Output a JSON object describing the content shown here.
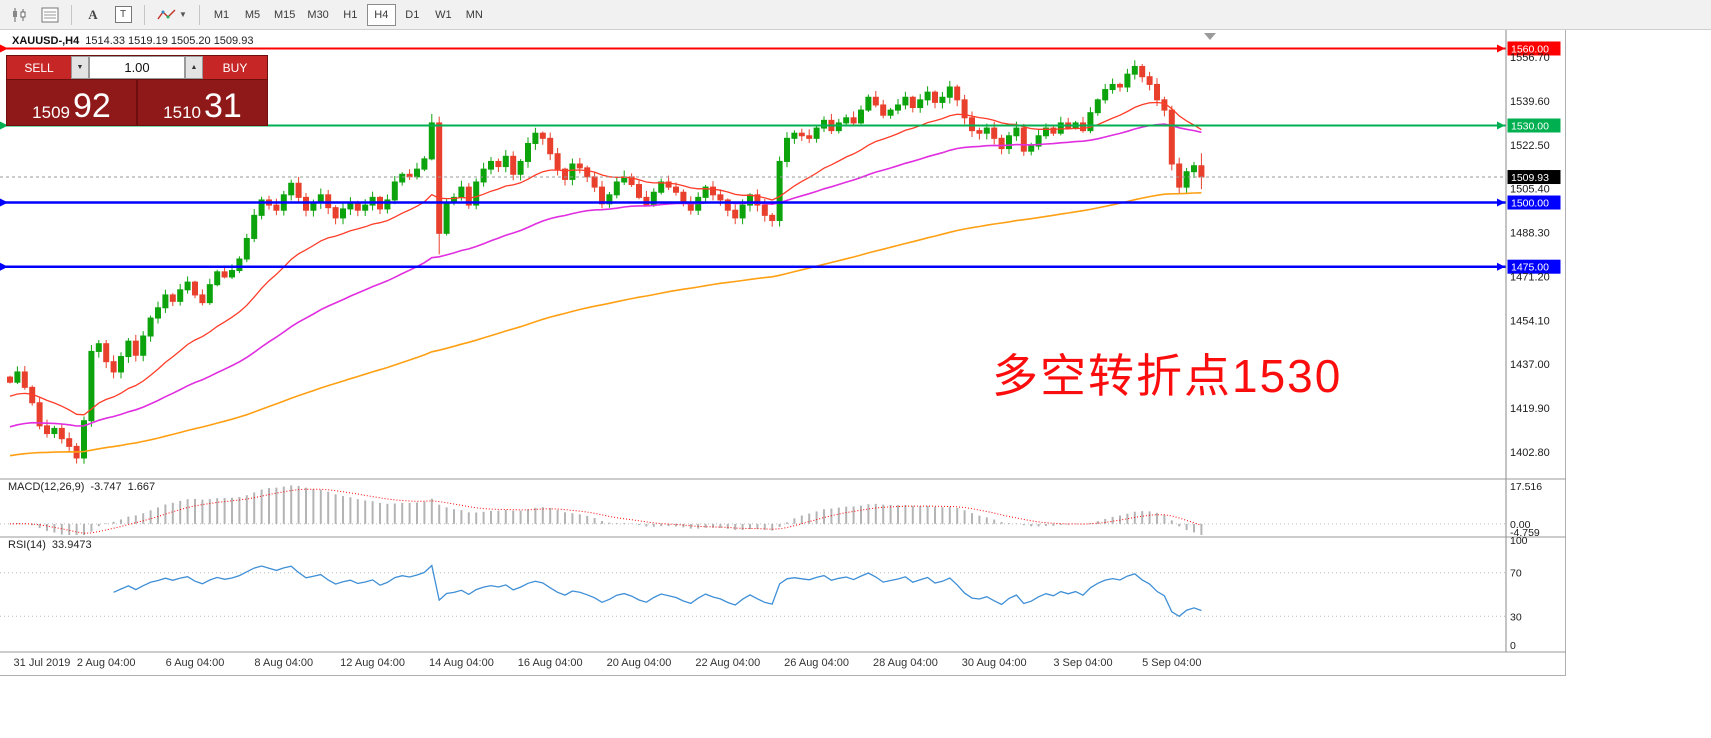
{
  "toolbar": {
    "cursor_label": "A",
    "text_label": "T",
    "timeframes": [
      {
        "label": "M1",
        "active": false
      },
      {
        "label": "M5",
        "active": false
      },
      {
        "label": "M15",
        "active": false
      },
      {
        "label": "M30",
        "active": false
      },
      {
        "label": "H1",
        "active": false
      },
      {
        "label": "H4",
        "active": true
      },
      {
        "label": "D1",
        "active": false
      },
      {
        "label": "W1",
        "active": false
      },
      {
        "label": "MN",
        "active": false
      }
    ]
  },
  "chart": {
    "symbol_title": "XAUUSD-,H4",
    "ohlc_line": "1514.33 1519.19 1505.20 1509.93",
    "trade_panel": {
      "sell_label": "SELL",
      "buy_label": "BUY",
      "volume": "1.00",
      "bid_main": "1509",
      "bid_pips": "92",
      "ask_main": "1510",
      "ask_pips": "31"
    },
    "price_axis": [
      {
        "text": "1556.70",
        "value": 1556.7
      },
      {
        "text": "1539.60",
        "value": 1539.6
      },
      {
        "text": "1522.50",
        "value": 1522.5
      },
      {
        "text": "1505.40",
        "value": 1505.4
      },
      {
        "text": "1488.30",
        "value": 1488.3
      },
      {
        "text": "1471.20",
        "value": 1471.2
      },
      {
        "text": "1454.10",
        "value": 1454.1
      },
      {
        "text": "1437.00",
        "value": 1437.0
      },
      {
        "text": "1419.90",
        "value": 1419.9
      },
      {
        "text": "1402.80",
        "value": 1402.8
      }
    ]
  },
  "chart_data": {
    "type": "candlestick",
    "symbol": "XAUUSD",
    "timeframe": "H4",
    "title": "XAUUSD-,H4 1514.33 1519.19 1505.20 1509.93",
    "annotation": {
      "text": "多空转折点1530",
      "color": "#fb0d0d"
    },
    "price_axis_range": {
      "min": 1392.3,
      "max": 1567.2
    },
    "up_color": "#0ca30c",
    "down_color": "#e8402c",
    "open_first": 1432,
    "closes": [
      1430,
      1434,
      1428,
      1422,
      1413,
      1410,
      1412,
      1408,
      1405,
      1400.5,
      1415,
      1442,
      1445,
      1438,
      1434,
      1440,
      1446,
      1440.5,
      1448,
      1455,
      1459,
      1464,
      1461.5,
      1466,
      1469,
      1464,
      1461,
      1468,
      1473,
      1471,
      1473.5,
      1478,
      1486,
      1495,
      1501,
      1499,
      1497,
      1503,
      1507.5,
      1502,
      1497,
      1500,
      1503,
      1498,
      1494,
      1497.5,
      1500,
      1497,
      1499,
      1502,
      1497.5,
      1501,
      1508,
      1511,
      1510,
      1513,
      1517,
      1531,
      1488,
      1500,
      1502,
      1506,
      1499,
      1508,
      1513,
      1516,
      1514,
      1518,
      1511,
      1516,
      1523,
      1527,
      1525,
      1519,
      1513,
      1509,
      1515,
      1513.5,
      1510,
      1506,
      1499.5,
      1503,
      1508,
      1510,
      1507,
      1502,
      1499,
      1504,
      1508,
      1506,
      1504,
      1500,
      1497,
      1502,
      1506,
      1503,
      1501,
      1497,
      1494,
      1499,
      1503,
      1499,
      1495,
      1493,
      1516,
      1525,
      1527,
      1526,
      1525,
      1529,
      1532,
      1528,
      1531,
      1533,
      1531,
      1536,
      1541,
      1538,
      1534,
      1536,
      1538,
      1541,
      1537,
      1540,
      1543,
      1539,
      1541,
      1545,
      1540,
      1533,
      1528,
      1527,
      1529,
      1525,
      1521,
      1526,
      1529,
      1520,
      1522,
      1526,
      1529,
      1527,
      1531,
      1529,
      1531,
      1528,
      1535,
      1540,
      1544,
      1546,
      1545,
      1550,
      1553,
      1549,
      1546,
      1540,
      1536,
      1515,
      1506,
      1512,
      1514.33,
      1509.93
    ],
    "wick_overrides": {
      "57": {
        "high": 1534.5
      },
      "58": {
        "low": 1479.8
      }
    },
    "current_bar": {
      "open": 1514.33,
      "high": 1519.19,
      "low": 1505.2,
      "close": 1509.93
    },
    "horizontal_lines": [
      {
        "value": 1560.0,
        "label": "1560.00",
        "color": "#ff0000",
        "width": 2
      },
      {
        "value": 1530.0,
        "label": "1530.00",
        "color": "#00b050",
        "width": 2
      },
      {
        "value": 1500.0,
        "label": "1500.00",
        "color": "#0000ff",
        "width": 2.5
      },
      {
        "value": 1475.0,
        "label": "1475.00",
        "color": "#0000ff",
        "width": 2.5
      }
    ],
    "bid_marker": {
      "value": 1509.93,
      "label": "1509.93",
      "bg": "#000000"
    },
    "moving_averages": [
      {
        "name": "fast-ema",
        "period": 21,
        "seed": 1424,
        "color": "#ff3c28",
        "stroke": 1.3
      },
      {
        "name": "mid-ema",
        "period": 55,
        "seed": 1412,
        "color": "#e02ee0",
        "stroke": 1.6
      },
      {
        "name": "slow-ema",
        "period": 150,
        "seed": 1401,
        "color": "#ffa014",
        "stroke": 1.6
      }
    ],
    "x_labels": [
      {
        "i": 2,
        "t": "31 Jul 2019"
      },
      {
        "i": 13,
        "t": "2 Aug 04:00"
      },
      {
        "i": 25,
        "t": "6 Aug 04:00"
      },
      {
        "i": 37,
        "t": "8 Aug 04:00"
      },
      {
        "i": 49,
        "t": "12 Aug 04:00"
      },
      {
        "i": 61,
        "t": "14 Aug 04:00"
      },
      {
        "i": 73,
        "t": "16 Aug 04:00"
      },
      {
        "i": 85,
        "t": "20 Aug 04:00"
      },
      {
        "i": 97,
        "t": "22 Aug 04:00"
      },
      {
        "i": 109,
        "t": "26 Aug 04:00"
      },
      {
        "i": 121,
        "t": "28 Aug 04:00"
      },
      {
        "i": 133,
        "t": "30 Aug 04:00"
      },
      {
        "i": 145,
        "t": "3 Sep 04:00"
      },
      {
        "i": 157,
        "t": "5 Sep 04:00"
      }
    ],
    "macd": {
      "label": "MACD(12,26,9)",
      "value": "-3.747",
      "signal_value": "1.667",
      "fast": 12,
      "slow": 26,
      "signal": 9,
      "scale_max": 17.516,
      "scale_min": -4.759,
      "scale_labels": [
        "17.516",
        "0.00",
        "-4.759"
      ],
      "hist_color": "#b4b4b4",
      "signal_color": "#ff0000"
    },
    "rsi": {
      "label": "RSI(14)",
      "value": "33.9473",
      "period": 14,
      "levels": [
        100,
        70,
        30,
        0
      ],
      "level_lines": [
        70,
        30
      ],
      "line_color": "#3f8fd6"
    }
  }
}
